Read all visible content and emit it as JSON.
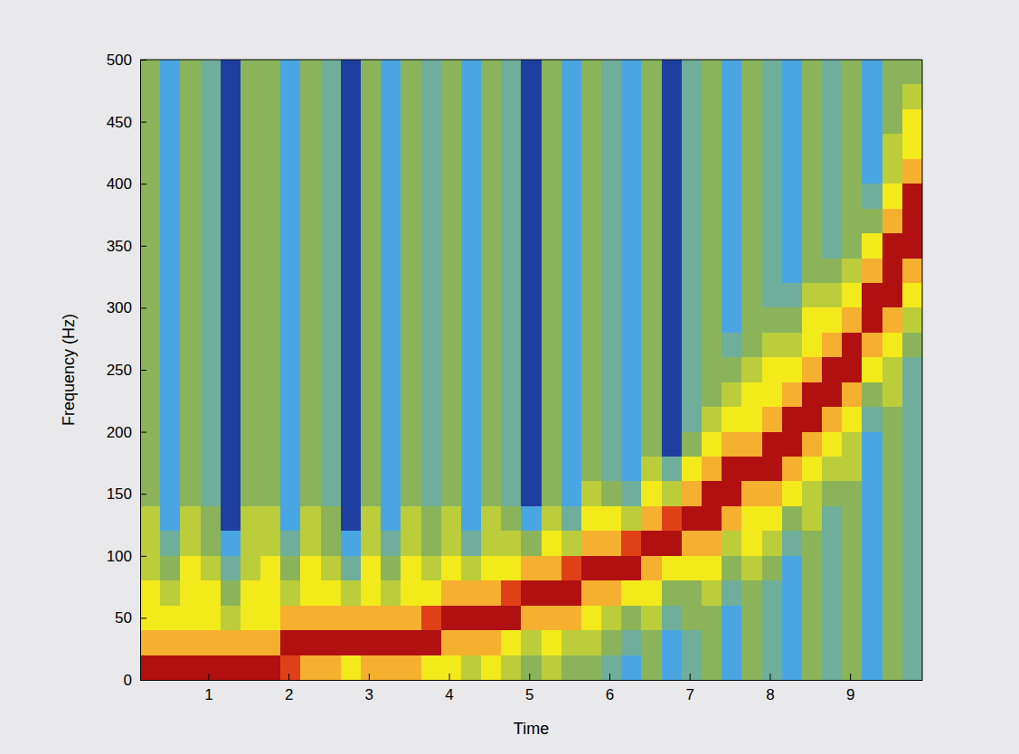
{
  "chart_data": {
    "type": "heatmap",
    "x_label": "Time",
    "y_label": "Frequency (Hz)",
    "xlim": [
      0.15,
      9.9
    ],
    "ylim": [
      0,
      500
    ],
    "xticks": [
      1,
      2,
      3,
      4,
      5,
      6,
      7,
      8,
      9
    ],
    "yticks": [
      0,
      50,
      100,
      150,
      200,
      250,
      300,
      350,
      400,
      450,
      500
    ],
    "zlim": [
      0,
      10
    ],
    "x": [
      0.15,
      0.4,
      0.65,
      0.9,
      1.15,
      1.4,
      1.65,
      1.9,
      2.15,
      2.4,
      2.65,
      2.9,
      3.15,
      3.4,
      3.65,
      3.9,
      4.15,
      4.4,
      4.65,
      4.9,
      5.15,
      5.4,
      5.65,
      5.9,
      6.15,
      6.4,
      6.65,
      6.9,
      7.15,
      7.4,
      7.65,
      7.9,
      8.15,
      8.4,
      8.65,
      8.9,
      9.15,
      9.4,
      9.65
    ],
    "y": [
      0,
      20,
      40,
      60,
      80,
      100,
      120,
      140,
      160,
      180,
      200,
      220,
      240,
      260,
      280,
      300,
      320,
      340,
      360,
      380,
      400,
      420,
      440,
      460,
      480
    ],
    "values": [
      [
        10,
        8,
        7,
        7,
        6,
        6,
        6,
        5,
        5,
        5,
        5,
        5,
        5,
        5,
        5,
        5,
        5,
        5,
        5,
        5,
        5,
        5,
        5,
        5,
        5
      ],
      [
        10,
        8,
        7,
        6,
        5,
        4,
        3,
        3,
        3,
        3,
        3,
        3,
        3,
        3,
        3,
        3,
        3,
        3,
        3,
        3,
        3,
        3,
        3,
        3,
        3
      ],
      [
        10,
        8,
        7,
        7,
        7,
        6,
        6,
        5,
        5,
        5,
        5,
        5,
        5,
        5,
        5,
        5,
        5,
        5,
        5,
        5,
        5,
        5,
        5,
        5,
        5
      ],
      [
        10,
        8,
        7,
        7,
        6,
        5,
        5,
        4,
        4,
        4,
        4,
        4,
        4,
        4,
        4,
        4,
        4,
        4,
        4,
        4,
        4,
        4,
        4,
        4,
        4
      ],
      [
        10,
        8,
        6,
        5,
        4,
        3,
        2,
        2,
        2,
        2,
        2,
        2,
        2,
        2,
        2,
        2,
        2,
        2,
        2,
        2,
        2,
        2,
        2,
        2,
        2
      ],
      [
        10,
        8,
        7,
        7,
        6,
        6,
        6,
        5,
        5,
        5,
        5,
        5,
        5,
        5,
        5,
        5,
        5,
        5,
        5,
        5,
        5,
        5,
        5,
        5,
        5
      ],
      [
        10,
        8,
        7,
        7,
        7,
        6,
        6,
        5,
        5,
        5,
        5,
        5,
        5,
        5,
        5,
        5,
        5,
        5,
        5,
        5,
        5,
        5,
        5,
        5,
        5
      ],
      [
        9,
        10,
        8,
        6,
        5,
        4,
        3,
        3,
        3,
        3,
        3,
        3,
        3,
        3,
        3,
        3,
        3,
        3,
        3,
        3,
        3,
        3,
        3,
        3,
        3
      ],
      [
        8,
        10,
        8,
        7,
        7,
        6,
        6,
        5,
        5,
        5,
        5,
        5,
        5,
        5,
        5,
        5,
        5,
        5,
        5,
        5,
        5,
        5,
        5,
        5,
        5
      ],
      [
        8,
        10,
        8,
        7,
        6,
        5,
        5,
        4,
        4,
        4,
        4,
        4,
        4,
        4,
        4,
        4,
        4,
        4,
        4,
        4,
        4,
        4,
        4,
        4,
        4
      ],
      [
        7,
        10,
        8,
        6,
        4,
        3,
        2,
        2,
        2,
        2,
        2,
        2,
        2,
        2,
        2,
        2,
        2,
        2,
        2,
        2,
        2,
        2,
        2,
        2,
        2
      ],
      [
        8,
        10,
        8,
        7,
        7,
        6,
        6,
        5,
        5,
        5,
        5,
        5,
        5,
        5,
        5,
        5,
        5,
        5,
        5,
        5,
        5,
        5,
        5,
        5,
        5
      ],
      [
        8,
        10,
        8,
        6,
        5,
        4,
        3,
        3,
        3,
        3,
        3,
        3,
        3,
        3,
        3,
        3,
        3,
        3,
        3,
        3,
        3,
        3,
        3,
        3,
        3
      ],
      [
        8,
        10,
        8,
        7,
        7,
        6,
        6,
        5,
        5,
        5,
        5,
        5,
        5,
        5,
        5,
        5,
        5,
        5,
        5,
        5,
        5,
        5,
        5,
        5,
        5
      ],
      [
        7,
        10,
        9,
        7,
        6,
        5,
        5,
        4,
        4,
        4,
        4,
        4,
        4,
        4,
        4,
        4,
        4,
        4,
        4,
        4,
        4,
        4,
        4,
        4,
        4
      ],
      [
        7,
        8,
        10,
        8,
        7,
        6,
        6,
        5,
        5,
        5,
        5,
        5,
        5,
        5,
        5,
        5,
        5,
        5,
        5,
        5,
        5,
        5,
        5,
        5,
        5
      ],
      [
        6,
        8,
        10,
        8,
        6,
        4,
        3,
        3,
        3,
        3,
        3,
        3,
        3,
        3,
        3,
        3,
        3,
        3,
        3,
        3,
        3,
        3,
        3,
        3,
        3
      ],
      [
        7,
        8,
        10,
        8,
        7,
        6,
        6,
        5,
        5,
        5,
        5,
        5,
        5,
        5,
        5,
        5,
        5,
        5,
        5,
        5,
        5,
        5,
        5,
        5,
        5
      ],
      [
        6,
        7,
        10,
        9,
        7,
        6,
        5,
        4,
        4,
        4,
        4,
        4,
        4,
        4,
        4,
        4,
        4,
        4,
        4,
        4,
        4,
        4,
        4,
        4,
        4
      ],
      [
        5,
        6,
        8,
        10,
        8,
        5,
        3,
        2,
        2,
        2,
        2,
        2,
        2,
        2,
        2,
        2,
        2,
        2,
        2,
        2,
        2,
        2,
        2,
        2,
        2
      ],
      [
        6,
        7,
        8,
        10,
        8,
        7,
        6,
        5,
        5,
        5,
        5,
        5,
        5,
        5,
        5,
        5,
        5,
        5,
        5,
        5,
        5,
        5,
        5,
        5,
        5
      ],
      [
        5,
        6,
        8,
        10,
        9,
        6,
        4,
        3,
        3,
        3,
        3,
        3,
        3,
        3,
        3,
        3,
        3,
        3,
        3,
        3,
        3,
        3,
        3,
        3,
        3
      ],
      [
        5,
        6,
        7,
        8,
        10,
        8,
        7,
        6,
        5,
        5,
        5,
        5,
        5,
        5,
        5,
        5,
        5,
        5,
        5,
        5,
        5,
        5,
        5,
        5,
        5
      ],
      [
        4,
        5,
        6,
        8,
        10,
        8,
        7,
        5,
        4,
        4,
        4,
        4,
        4,
        4,
        4,
        4,
        4,
        4,
        4,
        4,
        4,
        4,
        4,
        4,
        4
      ],
      [
        3,
        4,
        5,
        7,
        10,
        9,
        6,
        4,
        3,
        3,
        3,
        3,
        3,
        3,
        3,
        3,
        3,
        3,
        3,
        3,
        3,
        3,
        3,
        3,
        3
      ],
      [
        5,
        5,
        6,
        7,
        8,
        10,
        8,
        7,
        6,
        5,
        5,
        5,
        5,
        5,
        5,
        5,
        5,
        5,
        5,
        5,
        5,
        5,
        5,
        5,
        5
      ],
      [
        3,
        3,
        4,
        5,
        7,
        10,
        9,
        6,
        4,
        2,
        2,
        2,
        2,
        2,
        2,
        2,
        2,
        2,
        2,
        2,
        2,
        2,
        2,
        2,
        2
      ],
      [
        4,
        4,
        5,
        5,
        7,
        8,
        10,
        8,
        7,
        5,
        4,
        4,
        4,
        4,
        4,
        4,
        4,
        4,
        4,
        4,
        4,
        4,
        4,
        4,
        4
      ],
      [
        5,
        5,
        5,
        6,
        7,
        8,
        10,
        10,
        8,
        7,
        6,
        5,
        5,
        5,
        5,
        5,
        5,
        5,
        5,
        5,
        5,
        5,
        5,
        5,
        5
      ],
      [
        3,
        3,
        3,
        4,
        5,
        6,
        8,
        10,
        10,
        8,
        7,
        6,
        5,
        4,
        3,
        3,
        3,
        3,
        3,
        3,
        3,
        3,
        3,
        3,
        3
      ],
      [
        5,
        5,
        5,
        5,
        6,
        7,
        7,
        8,
        10,
        8,
        7,
        7,
        6,
        5,
        5,
        5,
        5,
        5,
        5,
        5,
        5,
        5,
        5,
        5,
        5
      ],
      [
        4,
        4,
        4,
        4,
        5,
        6,
        7,
        8,
        10,
        10,
        8,
        7,
        7,
        6,
        5,
        4,
        4,
        4,
        4,
        4,
        4,
        4,
        4,
        4,
        4
      ],
      [
        3,
        3,
        3,
        3,
        3,
        4,
        5,
        7,
        8,
        10,
        10,
        8,
        7,
        6,
        5,
        4,
        3,
        3,
        3,
        3,
        3,
        3,
        3,
        3,
        3
      ],
      [
        5,
        5,
        5,
        5,
        5,
        5,
        6,
        6,
        7,
        8,
        10,
        10,
        8,
        7,
        7,
        6,
        5,
        5,
        5,
        5,
        5,
        5,
        5,
        5,
        5
      ],
      [
        4,
        4,
        4,
        4,
        4,
        4,
        4,
        5,
        6,
        7,
        8,
        10,
        10,
        8,
        7,
        6,
        5,
        4,
        4,
        4,
        4,
        4,
        4,
        4,
        4
      ],
      [
        5,
        5,
        5,
        5,
        5,
        5,
        5,
        5,
        6,
        6,
        7,
        8,
        10,
        10,
        8,
        7,
        6,
        5,
        5,
        5,
        5,
        5,
        5,
        5,
        5
      ],
      [
        3,
        3,
        3,
        3,
        3,
        3,
        3,
        3,
        3,
        3,
        4,
        5,
        7,
        8,
        10,
        10,
        8,
        7,
        5,
        4,
        3,
        3,
        3,
        3,
        3
      ],
      [
        5,
        5,
        5,
        5,
        5,
        5,
        5,
        5,
        5,
        5,
        5,
        6,
        6,
        7,
        8,
        10,
        10,
        10,
        8,
        7,
        6,
        6,
        5,
        5,
        5
      ],
      [
        4,
        4,
        4,
        4,
        4,
        4,
        4,
        4,
        4,
        4,
        4,
        4,
        4,
        5,
        6,
        7,
        8,
        10,
        10,
        10,
        8,
        7,
        7,
        6,
        5
      ]
    ]
  }
}
